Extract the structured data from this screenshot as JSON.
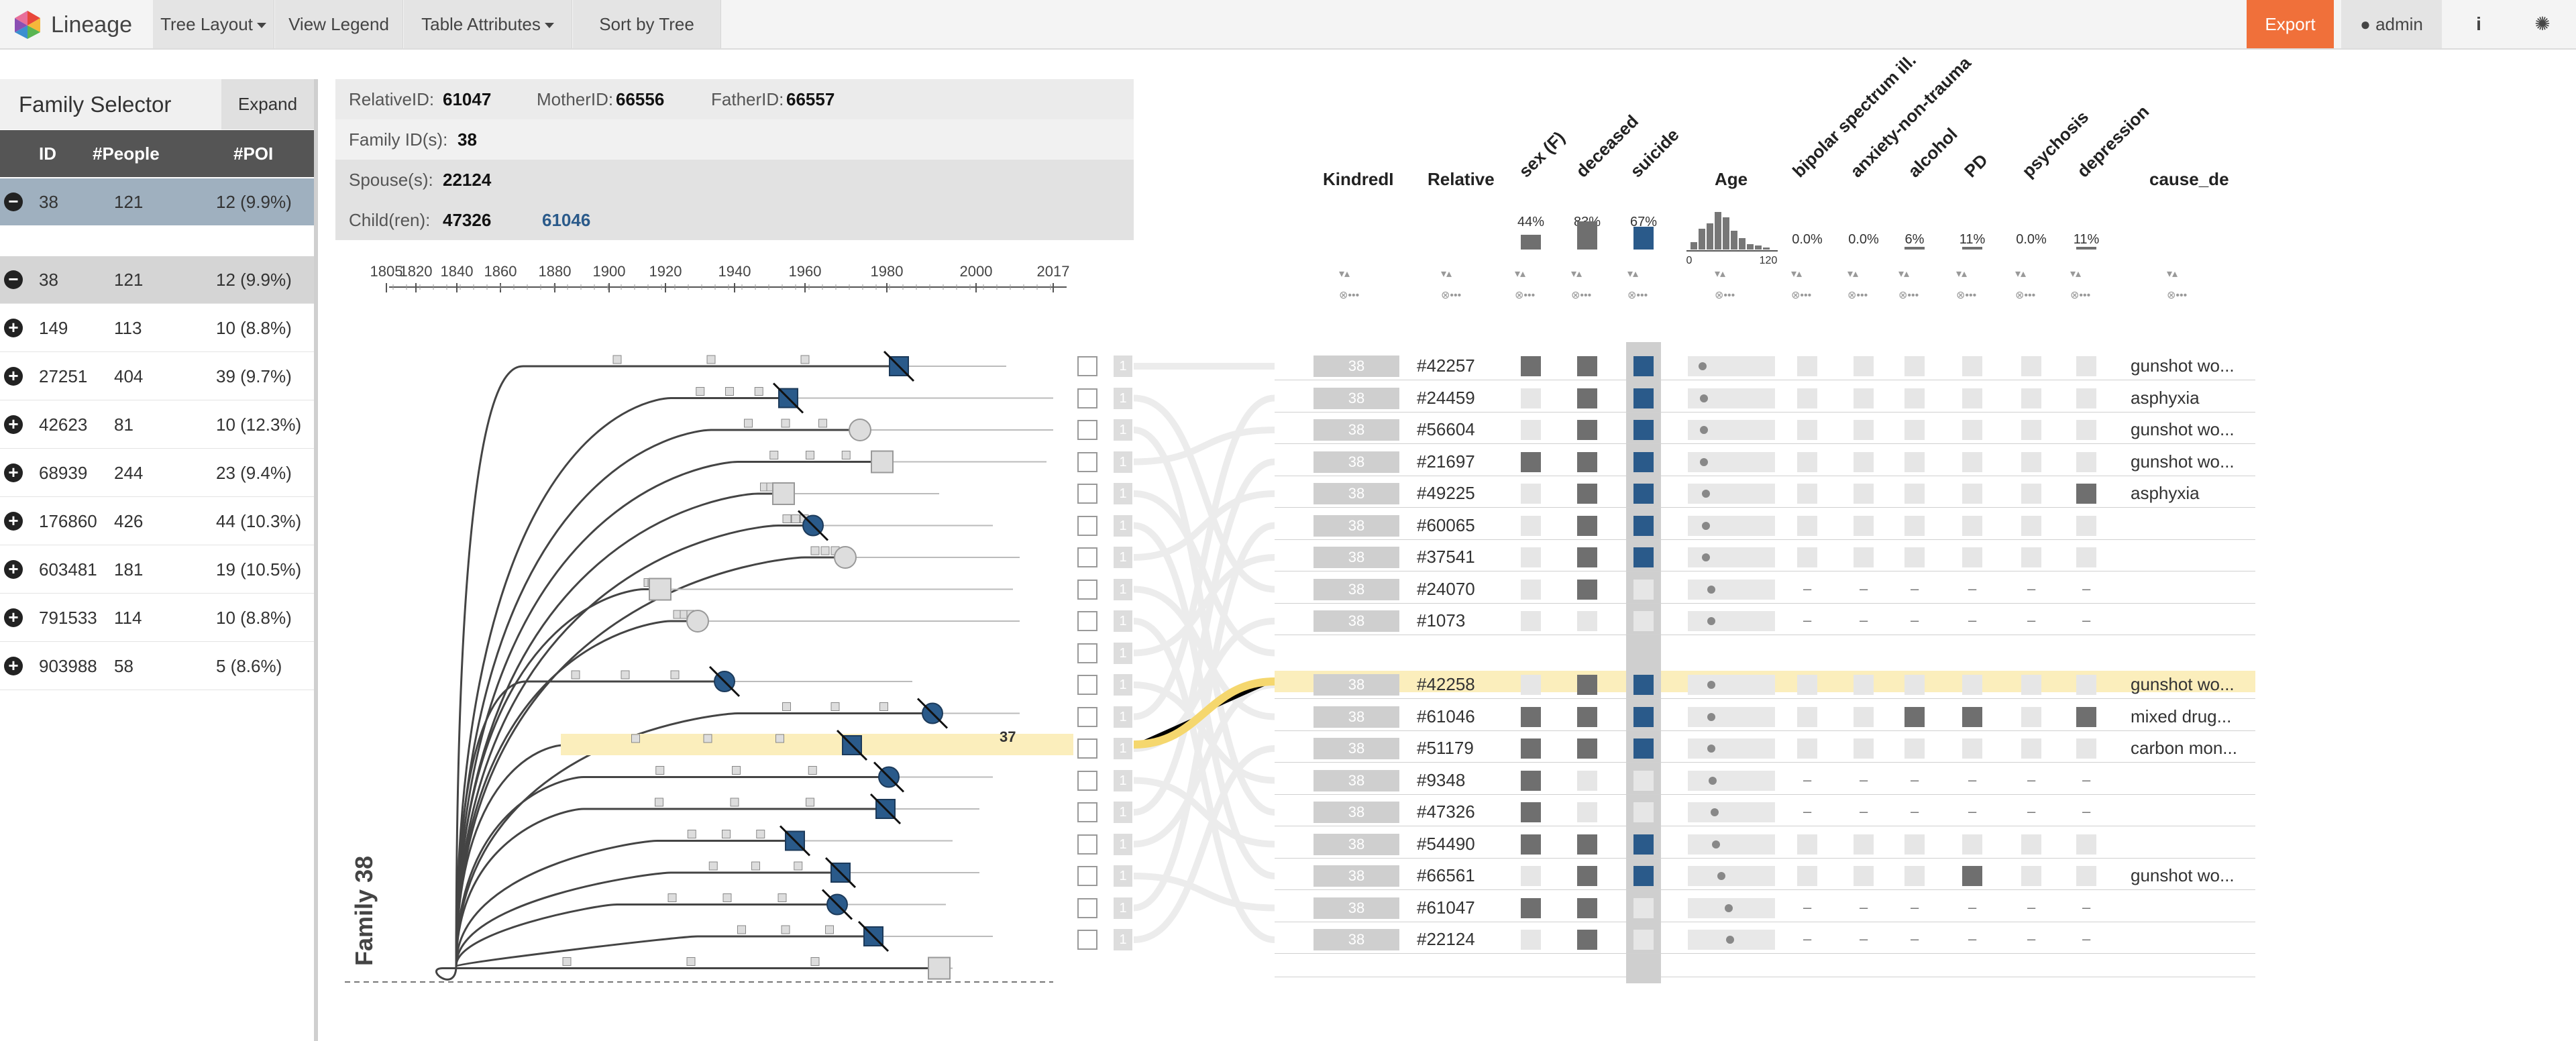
{
  "navbar": {
    "brand": "Lineage",
    "buttons": [
      "Tree Layout",
      "View Legend",
      "Table Attributes",
      "Sort by Tree"
    ],
    "export": "Export",
    "user": "admin"
  },
  "family_selector": {
    "title": "Family Selector",
    "expand": "Expand",
    "headers": [
      "ID",
      "#People",
      "#POI"
    ],
    "selected": {
      "id": "38",
      "people": "121",
      "poi": "12 (9.9%)"
    },
    "rows": [
      {
        "id": "38",
        "people": "121",
        "poi": "12 (9.9%)",
        "state": "minus"
      },
      {
        "id": "149",
        "people": "113",
        "poi": "10 (8.8%)",
        "state": "plus"
      },
      {
        "id": "27251",
        "people": "404",
        "poi": "39 (9.7%)",
        "state": "plus"
      },
      {
        "id": "42623",
        "people": "81",
        "poi": "10 (12.3%)",
        "state": "plus"
      },
      {
        "id": "68939",
        "people": "244",
        "poi": "23 (9.4%)",
        "state": "plus"
      },
      {
        "id": "176860",
        "people": "426",
        "poi": "44 (10.3%)",
        "state": "plus"
      },
      {
        "id": "603481",
        "people": "181",
        "poi": "19 (10.5%)",
        "state": "plus"
      },
      {
        "id": "791533",
        "people": "114",
        "poi": "10 (8.8%)",
        "state": "plus"
      },
      {
        "id": "903988",
        "people": "58",
        "poi": "5 (8.6%)",
        "state": "plus"
      }
    ]
  },
  "info": {
    "relative_label": "RelativeID:",
    "relative_id": "61047",
    "mother_label": "MotherID:",
    "mother_id": "66556",
    "father_label": "FatherID:",
    "father_id": "66557",
    "family_label": "Family ID(s):",
    "family_ids": "38",
    "spouse_label": "Spouse(s):",
    "spouse": "22124",
    "children_label": "Child(ren):",
    "child1": "47326",
    "child2": "61046"
  },
  "timeline": {
    "ticks": [
      "1805",
      "1820",
      "1840",
      "1860",
      "1880",
      "1900",
      "1920",
      "1940",
      "1960",
      "1980",
      "2000",
      "2017"
    ]
  },
  "tree": {
    "family_label": "Family 38",
    "highlight_age": "37"
  },
  "table": {
    "headers": {
      "kindred": "KindredI",
      "relative": "Relative",
      "sex": "sex (F)",
      "deceased": "deceased",
      "suicide": "suicide",
      "age": "Age",
      "bipolar": "bipolar spectrum ill.",
      "anxiety": "anxiety-non-trauma",
      "alcohol": "alcohol",
      "pd": "PD",
      "psychosis": "psychosis",
      "depression": "depression",
      "cause": "cause_de"
    },
    "stats": {
      "sex": "44%",
      "deceased": "83%",
      "suicide": "67%",
      "bipolar": "0.0%",
      "anxiety": "0.0%",
      "alcohol": "6%",
      "pd": "11%",
      "psychosis": "0.0%",
      "depression": "11%",
      "age_min": "0",
      "age_max": "120"
    },
    "colors": {
      "dark": "#6f6f6f",
      "light": "#e6e6e6",
      "blue": "#2a5a8a",
      "highlight": "#fbeebc"
    },
    "rows": [
      {
        "kin": "38",
        "rel": "#42257",
        "sex": 1,
        "dec": 1,
        "sui": 1,
        "age": 0.12,
        "flags": [
          0,
          0,
          0,
          0,
          0,
          0
        ],
        "cause": "gunshot wo..."
      },
      {
        "kin": "38",
        "rel": "#24459",
        "sex": 0,
        "dec": 1,
        "sui": 1,
        "age": 0.14,
        "flags": [
          0,
          0,
          0,
          0,
          0,
          0
        ],
        "cause": "asphyxia"
      },
      {
        "kin": "38",
        "rel": "#56604",
        "sex": 0,
        "dec": 1,
        "sui": 1,
        "age": 0.14,
        "flags": [
          0,
          0,
          0,
          0,
          0,
          0
        ],
        "cause": "gunshot wo..."
      },
      {
        "kin": "38",
        "rel": "#21697",
        "sex": 1,
        "dec": 1,
        "sui": 1,
        "age": 0.14,
        "flags": [
          0,
          0,
          0,
          0,
          0,
          0
        ],
        "cause": "gunshot wo..."
      },
      {
        "kin": "38",
        "rel": "#49225",
        "sex": 0,
        "dec": 1,
        "sui": 1,
        "age": 0.16,
        "flags": [
          0,
          0,
          0,
          0,
          0,
          1
        ],
        "cause": "asphyxia"
      },
      {
        "kin": "38",
        "rel": "#60065",
        "sex": 0,
        "dec": 1,
        "sui": 1,
        "age": 0.16,
        "flags": [
          0,
          0,
          0,
          0,
          0,
          0
        ],
        "cause": ""
      },
      {
        "kin": "38",
        "rel": "#37541",
        "sex": 0,
        "dec": 1,
        "sui": 1,
        "age": 0.16,
        "flags": [
          0,
          0,
          0,
          0,
          0,
          0
        ],
        "cause": ""
      },
      {
        "kin": "38",
        "rel": "#24070",
        "sex": 0,
        "dec": 1,
        "sui": 0,
        "age": 0.22,
        "flags": null,
        "cause": ""
      },
      {
        "kin": "38",
        "rel": "#1073",
        "sex": 0,
        "dec": 0,
        "sui": 0,
        "age": 0.22,
        "flags": null,
        "cause": ""
      },
      {
        "kin": "38",
        "rel": "#42258",
        "sex": 0,
        "dec": 1,
        "sui": 1,
        "age": 0.22,
        "flags": [
          0,
          0,
          0,
          0,
          0,
          0
        ],
        "cause": "gunshot wo...",
        "highlight": true
      },
      {
        "kin": "38",
        "rel": "#61046",
        "sex": 1,
        "dec": 1,
        "sui": 1,
        "age": 0.22,
        "flags": [
          0,
          0,
          1,
          1,
          0,
          1
        ],
        "cause": "mixed drug..."
      },
      {
        "kin": "38",
        "rel": "#51179",
        "sex": 1,
        "dec": 1,
        "sui": 1,
        "age": 0.22,
        "flags": [
          0,
          0,
          0,
          0,
          0,
          0
        ],
        "cause": "carbon mon..."
      },
      {
        "kin": "38",
        "rel": "#9348",
        "sex": 1,
        "dec": 0,
        "sui": 0,
        "age": 0.24,
        "flags": null,
        "cause": ""
      },
      {
        "kin": "38",
        "rel": "#47326",
        "sex": 1,
        "dec": 0,
        "sui": 0,
        "age": 0.26,
        "flags": null,
        "cause": ""
      },
      {
        "kin": "38",
        "rel": "#54490",
        "sex": 1,
        "dec": 1,
        "sui": 1,
        "age": 0.28,
        "flags": [
          0,
          0,
          0,
          0,
          0,
          0
        ],
        "cause": ""
      },
      {
        "kin": "38",
        "rel": "#66561",
        "sex": 0,
        "dec": 1,
        "sui": 1,
        "age": 0.34,
        "flags": [
          0,
          0,
          0,
          1,
          0,
          0
        ],
        "cause": "gunshot wo..."
      },
      {
        "kin": "38",
        "rel": "#61047",
        "sex": 1,
        "dec": 1,
        "sui": 0,
        "age": 0.42,
        "flags": null,
        "cause": ""
      },
      {
        "kin": "38",
        "rel": "#22124",
        "sex": 0,
        "dec": 1,
        "sui": 0,
        "age": 0.44,
        "flags": null,
        "cause": ""
      }
    ]
  }
}
